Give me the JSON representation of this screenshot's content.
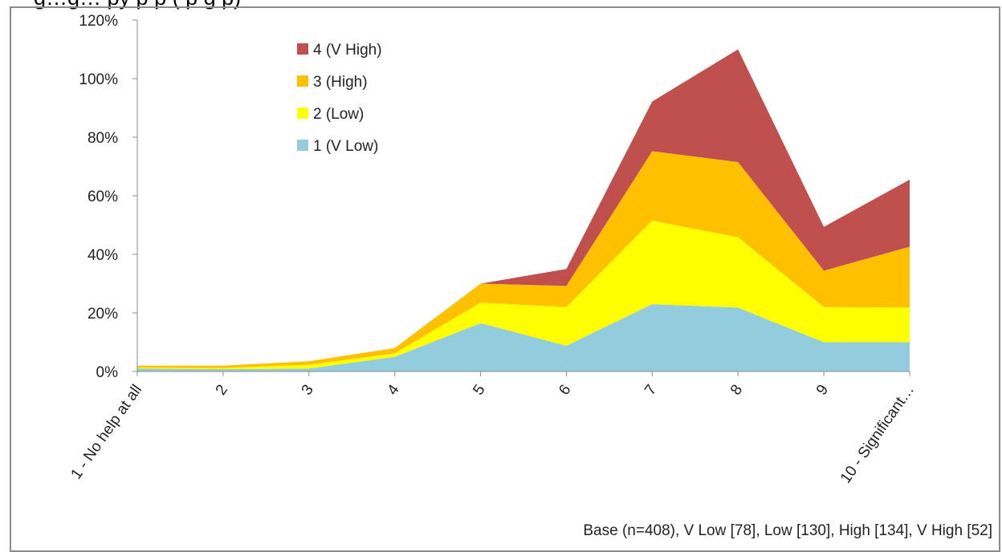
{
  "chart_data": {
    "type": "area",
    "stacked": true,
    "title": "g…g… py p p (  p   g  p)",
    "categories": [
      "1 - No help at all",
      "2",
      "3",
      "4",
      "5",
      "6",
      "7",
      "8",
      "9",
      "10 - Significant…"
    ],
    "y_tick_labels": [
      "0%",
      "20%",
      "40%",
      "60%",
      "80%",
      "100%",
      "120%"
    ],
    "ylim": [
      0,
      120
    ],
    "y_unit": "%",
    "grid": false,
    "legend_position": "top-left",
    "series": [
      {
        "name": "1 (V Low)",
        "color": "#93cddd",
        "values": [
          1.0,
          0.8,
          1.0,
          5.0,
          16.5,
          8.8,
          23.0,
          21.8,
          10.0,
          10.0
        ]
      },
      {
        "name": "2 (Low)",
        "color": "#ffff00",
        "values": [
          0.3,
          0.4,
          1.3,
          1.2,
          7.0,
          13.2,
          28.5,
          24.0,
          12.0,
          11.8
        ]
      },
      {
        "name": "3 (High)",
        "color": "#ffc000",
        "values": [
          0.7,
          0.8,
          1.2,
          1.8,
          6.5,
          7.2,
          23.7,
          25.7,
          12.4,
          20.8
        ]
      },
      {
        "name": "4 (V High)",
        "color": "#c0504d",
        "values": [
          0.0,
          0.0,
          0.0,
          0.0,
          0.0,
          5.8,
          17.0,
          38.5,
          15.0,
          22.9
        ]
      }
    ],
    "base_note": "Base (n=408), V Low [78], Low [130], High [134], V High [52]"
  }
}
